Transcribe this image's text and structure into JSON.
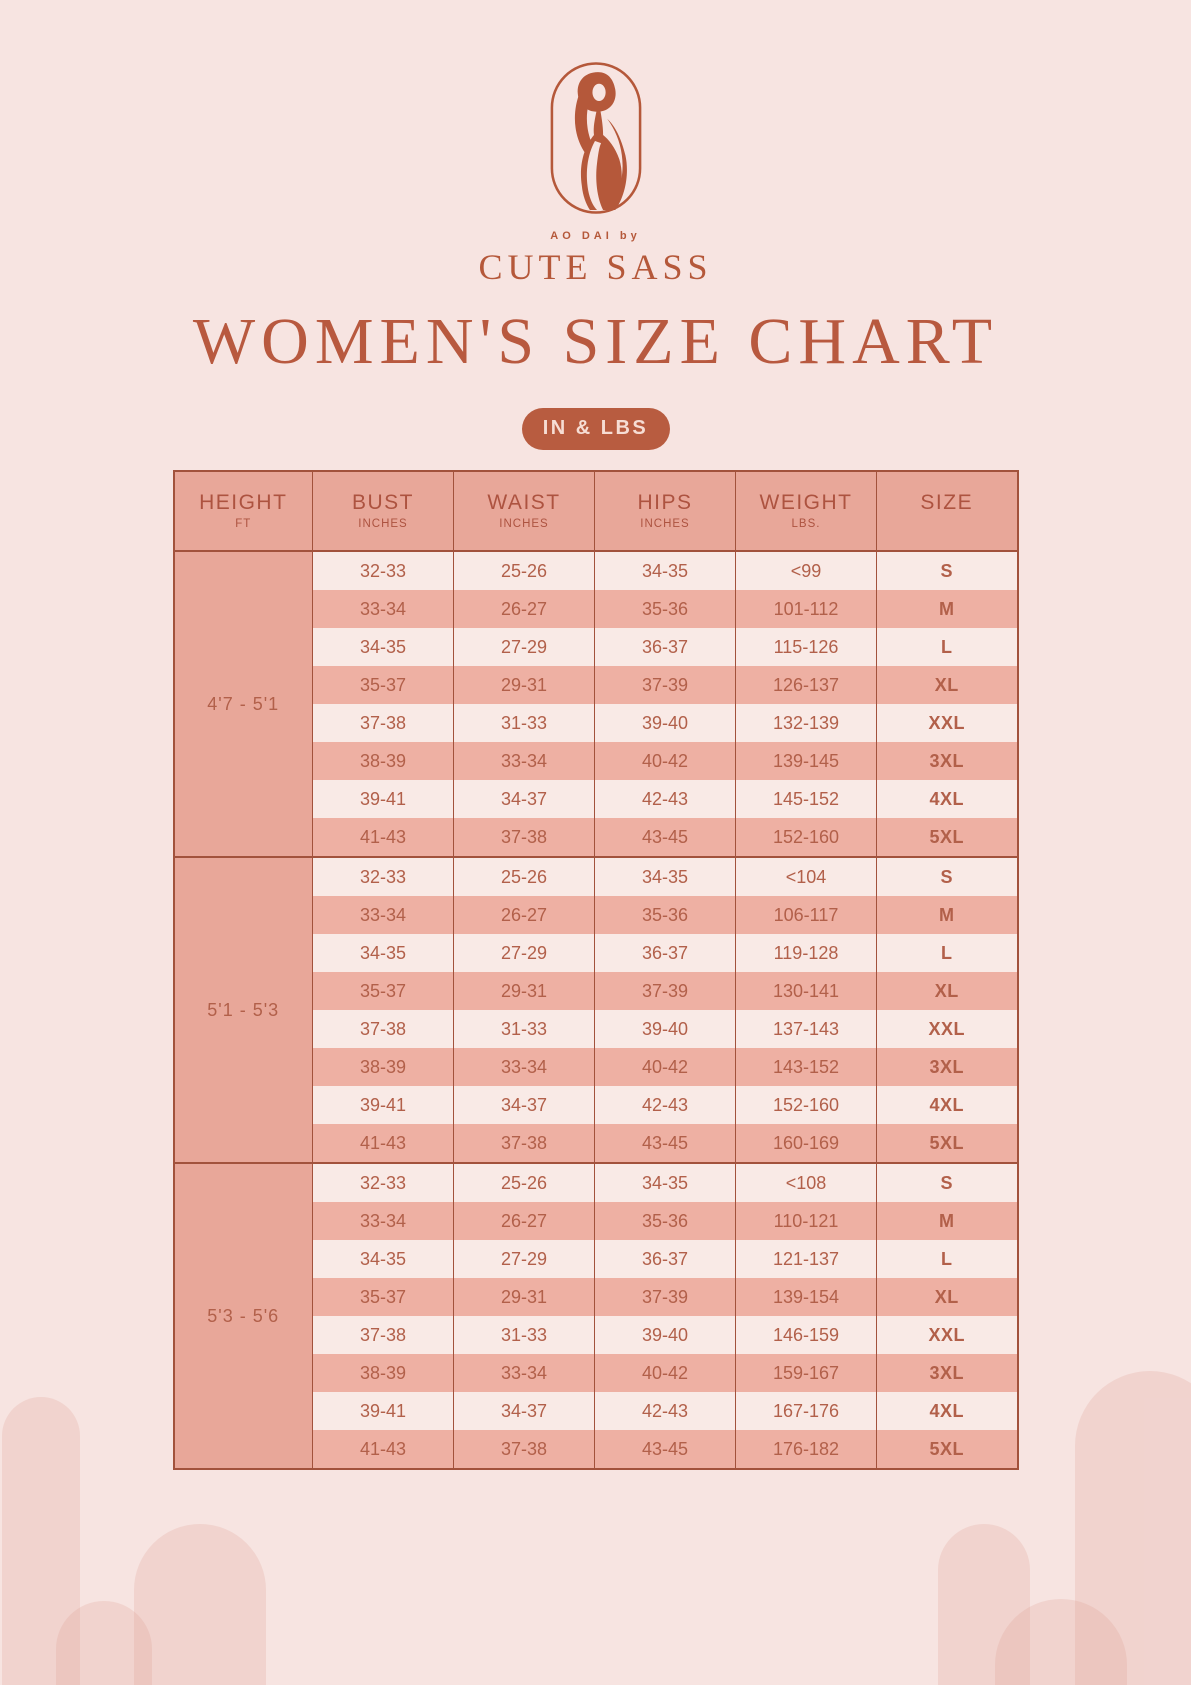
{
  "brand": {
    "logo_subtitle": "AO DAI by",
    "logo_title": "CUTE SASS"
  },
  "title": "WOMEN'S SIZE CHART",
  "units_badge": "IN & LBS",
  "colors": {
    "page_background": "#f7e4e1",
    "accent_terracotta": "#b5583a",
    "table_salmon": "#e8a799",
    "row_light": "#f9eae6",
    "row_dark": "#eeb0a3",
    "table_border": "#a2523c",
    "badge_text": "#f6ddd4",
    "arch_decoration": "#f1d4d0"
  },
  "table": {
    "headers": [
      {
        "label": "HEIGHT",
        "sub": "FT"
      },
      {
        "label": "BUST",
        "sub": "INCHES"
      },
      {
        "label": "WAIST",
        "sub": "INCHES"
      },
      {
        "label": "HIPS",
        "sub": "INCHES"
      },
      {
        "label": "WEIGHT",
        "sub": "LBS."
      },
      {
        "label": "SIZE",
        "sub": ""
      }
    ],
    "groups": [
      {
        "height": "4'7 - 5'1",
        "rows": [
          [
            "32-33",
            "25-26",
            "34-35",
            "<99",
            "S"
          ],
          [
            "33-34",
            "26-27",
            "35-36",
            "101-112",
            "M"
          ],
          [
            "34-35",
            "27-29",
            "36-37",
            "115-126",
            "L"
          ],
          [
            "35-37",
            "29-31",
            "37-39",
            "126-137",
            "XL"
          ],
          [
            "37-38",
            "31-33",
            "39-40",
            "132-139",
            "XXL"
          ],
          [
            "38-39",
            "33-34",
            "40-42",
            "139-145",
            "3XL"
          ],
          [
            "39-41",
            "34-37",
            "42-43",
            "145-152",
            "4XL"
          ],
          [
            "41-43",
            "37-38",
            "43-45",
            "152-160",
            "5XL"
          ]
        ]
      },
      {
        "height": "5'1 - 5'3",
        "rows": [
          [
            "32-33",
            "25-26",
            "34-35",
            "<104",
            "S"
          ],
          [
            "33-34",
            "26-27",
            "35-36",
            "106-117",
            "M"
          ],
          [
            "34-35",
            "27-29",
            "36-37",
            "119-128",
            "L"
          ],
          [
            "35-37",
            "29-31",
            "37-39",
            "130-141",
            "XL"
          ],
          [
            "37-38",
            "31-33",
            "39-40",
            "137-143",
            "XXL"
          ],
          [
            "38-39",
            "33-34",
            "40-42",
            "143-152",
            "3XL"
          ],
          [
            "39-41",
            "34-37",
            "42-43",
            "152-160",
            "4XL"
          ],
          [
            "41-43",
            "37-38",
            "43-45",
            "160-169",
            "5XL"
          ]
        ]
      },
      {
        "height": "5'3 - 5'6",
        "rows": [
          [
            "32-33",
            "25-26",
            "34-35",
            "<108",
            "S"
          ],
          [
            "33-34",
            "26-27",
            "35-36",
            "110-121",
            "M"
          ],
          [
            "34-35",
            "27-29",
            "36-37",
            "121-137",
            "L"
          ],
          [
            "35-37",
            "29-31",
            "37-39",
            "139-154",
            "XL"
          ],
          [
            "37-38",
            "31-33",
            "39-40",
            "146-159",
            "XXL"
          ],
          [
            "38-39",
            "33-34",
            "40-42",
            "159-167",
            "3XL"
          ],
          [
            "39-41",
            "34-37",
            "42-43",
            "167-176",
            "4XL"
          ],
          [
            "41-43",
            "37-38",
            "43-45",
            "176-182",
            "5XL"
          ]
        ]
      }
    ]
  }
}
